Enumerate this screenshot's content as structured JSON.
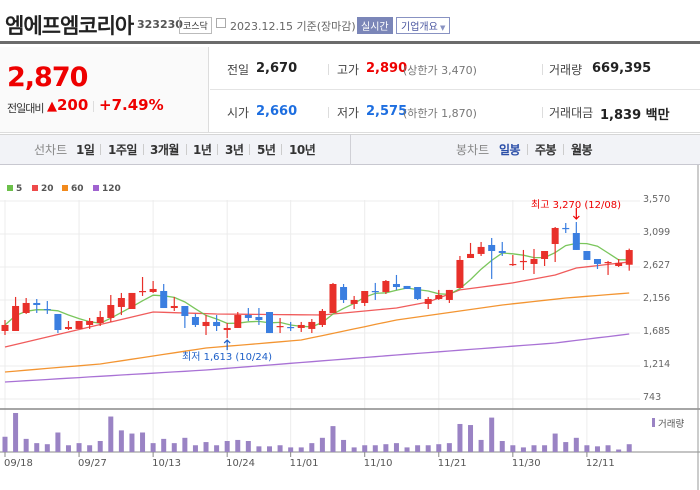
{
  "header": {
    "company_name": "엠에프엠코리아",
    "code": "323230",
    "market": "코스닥",
    "date": "2023.12.15 기준(장마감)",
    "realtime_label": "실시간",
    "company_info_label": "기업개요"
  },
  "quote": {
    "price": "2,870",
    "change_label": "전일대비",
    "change": "200",
    "change_pct": "+7.49%",
    "prev_label": "전일",
    "prev": "2,670",
    "open_label": "시가",
    "open": "2,660",
    "high_label": "고가",
    "high": "2,890",
    "upper_limit": "(상한가 3,470)",
    "low_label": "저가",
    "low": "2,575",
    "lower_limit": "(하한가 1,870)",
    "volume_label": "거래량",
    "volume": "669,395",
    "amount_label": "거래대금",
    "amount": "1,839 백만"
  },
  "line_chart": {
    "label": "선차트",
    "periods": [
      "1일",
      "1주일",
      "3개월",
      "1년",
      "3년",
      "5년",
      "10년"
    ]
  },
  "candle_chart": {
    "label": "봉차트",
    "periods": [
      "일봉",
      "주봉",
      "월봉"
    ],
    "active": "일봉"
  },
  "colors": {
    "up": "#e8302a",
    "down": "#3a7ee0",
    "ma5": "#6cc04a",
    "ma20": "#ee4a4a",
    "ma60": "#f28a1c",
    "ma120": "#a063d0",
    "volume": "#9a83c4"
  },
  "chart_data": {
    "type": "candlestick",
    "legend": [
      "5",
      "20",
      "60",
      "120"
    ],
    "y_ticks": [
      "3,570",
      "3,099",
      "2,627",
      "2,156",
      "1,685",
      "1,214",
      "743"
    ],
    "ylim": [
      743,
      3570
    ],
    "x_ticks": [
      {
        "label": "09/18",
        "i": 0
      },
      {
        "label": "09/27",
        "i": 7
      },
      {
        "label": "10/13",
        "i": 14
      },
      {
        "label": "10/24",
        "i": 21
      },
      {
        "label": "11/01",
        "i": 27
      },
      {
        "label": "11/10",
        "i": 34
      },
      {
        "label": "11/21",
        "i": 41
      },
      {
        "label": "11/30",
        "i": 48
      },
      {
        "label": "12/11",
        "i": 55
      }
    ],
    "max_annotation": {
      "text": "최고 3,270 (12/08)",
      "i": 54,
      "price": 3270
    },
    "min_annotation": {
      "text": "최저 1,613 (10/24)",
      "i": 21,
      "price": 1613
    },
    "ohlc": [
      [
        1714,
        1871,
        1657,
        1800
      ],
      [
        1714,
        2200,
        1714,
        2071
      ],
      [
        1971,
        2185,
        1957,
        2114
      ],
      [
        2114,
        2171,
        1971,
        2085
      ],
      [
        2028,
        2142,
        1957,
        2014
      ],
      [
        1957,
        1957,
        1685,
        1728
      ],
      [
        1743,
        1857,
        1728,
        1771
      ],
      [
        1743,
        1857,
        1743,
        1857
      ],
      [
        1800,
        1900,
        1743,
        1857
      ],
      [
        1828,
        2000,
        1785,
        1914
      ],
      [
        1900,
        2228,
        1843,
        2085
      ],
      [
        2057,
        2257,
        1942,
        2185
      ],
      [
        2028,
        2257,
        2028,
        2257
      ],
      [
        2271,
        2485,
        2214,
        2285
      ],
      [
        2271,
        2428,
        2257,
        2314
      ],
      [
        2285,
        2385,
        2042,
        2042
      ],
      [
        2042,
        2200,
        2000,
        2071
      ],
      [
        2071,
        2071,
        1757,
        1928
      ],
      [
        1914,
        1957,
        1771,
        1800
      ],
      [
        1785,
        1942,
        1657,
        1843
      ],
      [
        1843,
        1942,
        1714,
        1785
      ],
      [
        1728,
        1828,
        1613,
        1757
      ],
      [
        1757,
        1985,
        1757,
        1942
      ],
      [
        1942,
        2042,
        1857,
        1900
      ],
      [
        1914,
        2042,
        1800,
        1871
      ],
      [
        1985,
        1985,
        1685,
        1685
      ],
      [
        1771,
        1900,
        1685,
        1785
      ],
      [
        1771,
        1843,
        1714,
        1757
      ],
      [
        1757,
        1843,
        1700,
        1800
      ],
      [
        1743,
        1885,
        1685,
        1843
      ],
      [
        1800,
        2028,
        1771,
        2000
      ],
      [
        1971,
        2400,
        1971,
        2385
      ],
      [
        2342,
        2385,
        2114,
        2157
      ],
      [
        2100,
        2214,
        2028,
        2157
      ],
      [
        2114,
        2285,
        2071,
        2285
      ],
      [
        2285,
        2400,
        2157,
        2271
      ],
      [
        2271,
        2442,
        2242,
        2428
      ],
      [
        2385,
        2514,
        2300,
        2342
      ],
      [
        2357,
        2357,
        2314,
        2314
      ],
      [
        2342,
        2342,
        2157,
        2171
      ],
      [
        2100,
        2200,
        2028,
        2171
      ],
      [
        2171,
        2300,
        2157,
        2228
      ],
      [
        2157,
        2300,
        2114,
        2300
      ],
      [
        2328,
        2785,
        2328,
        2728
      ],
      [
        2756,
        2971,
        2756,
        2814
      ],
      [
        2814,
        2985,
        2785,
        2914
      ],
      [
        2942,
        3042,
        2457,
        2856
      ],
      [
        2856,
        2985,
        2785,
        2828
      ],
      [
        2657,
        2799,
        2642,
        2671
      ],
      [
        2699,
        2871,
        2585,
        2714
      ],
      [
        2671,
        2885,
        2528,
        2742
      ],
      [
        2742,
        2856,
        2642,
        2856
      ],
      [
        2956,
        3199,
        2699,
        3185
      ],
      [
        3185,
        3256,
        3113,
        3171
      ],
      [
        3113,
        3270,
        2871,
        2871
      ],
      [
        2856,
        2856,
        2728,
        2728
      ],
      [
        2742,
        2742,
        2599,
        2671
      ],
      [
        2685,
        2714,
        2514,
        2699
      ],
      [
        2642,
        2742,
        2628,
        2685
      ],
      [
        2660,
        2890,
        2575,
        2870
      ]
    ],
    "ma20": [
      [
        0,
        1486
      ],
      [
        10,
        1843
      ],
      [
        14,
        1985
      ],
      [
        20,
        1957
      ],
      [
        30,
        1942
      ],
      [
        37,
        2042
      ],
      [
        40,
        2128
      ],
      [
        43,
        2300
      ],
      [
        48,
        2400
      ],
      [
        52,
        2514
      ],
      [
        54,
        2614
      ],
      [
        59,
        2699
      ]
    ],
    "ma60": [
      [
        0,
        1129
      ],
      [
        9,
        1243
      ],
      [
        19,
        1471
      ],
      [
        28,
        1585
      ],
      [
        37,
        1871
      ],
      [
        47,
        2085
      ],
      [
        53,
        2185
      ],
      [
        59,
        2257
      ]
    ],
    "ma120": [
      [
        0,
        986
      ],
      [
        19,
        1157
      ],
      [
        37,
        1371
      ],
      [
        52,
        1543
      ],
      [
        59,
        1671
      ]
    ],
    "volume_label": "거래량",
    "volume_k": [
      1307,
      3344,
      1125,
      760,
      669,
      1672,
      578,
      760,
      578,
      942,
      3040,
      1854,
      1581,
      1672,
      760,
      1125,
      760,
      1216,
      578,
      851,
      578,
      942,
      1034,
      942,
      486,
      486,
      578,
      395,
      395,
      760,
      1216,
      2219,
      1034,
      395,
      578,
      578,
      669,
      760,
      395,
      578,
      578,
      669,
      760,
      2402,
      2310,
      1034,
      2949,
      942,
      578,
      395,
      578,
      578,
      1581,
      851,
      1216,
      578,
      486,
      578,
      213,
      669
    ]
  }
}
